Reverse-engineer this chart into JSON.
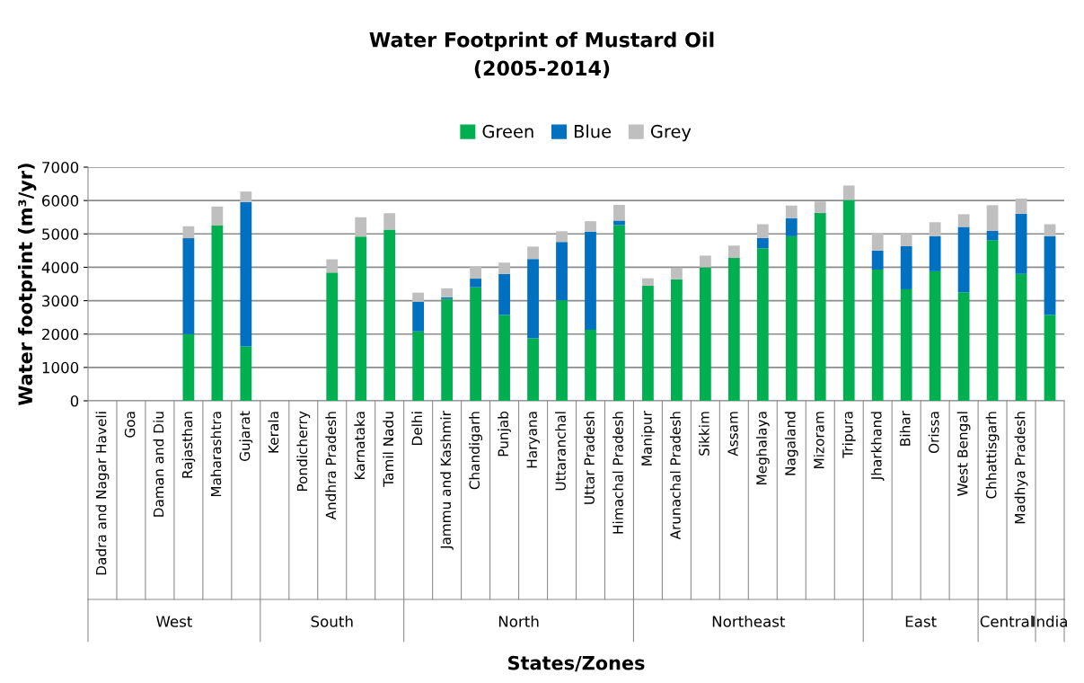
{
  "chart_data": {
    "type": "bar",
    "stacked": true,
    "title": "Water Footprint of Mustard Oil\n(2005-2014)",
    "xlabel": "States/Zones",
    "ylabel": "Water footprint (m³/yr)",
    "categories": [
      "Dadra and Nagar Haveli",
      "Goa",
      "Daman and Diu",
      "Rajasthan",
      "Maharashtra",
      "Gujarat",
      "Kerala",
      "Pondicherry",
      "Andhra Pradesh",
      "Karnataka",
      "Tamil Nadu",
      "Delhi",
      "Jammu and Kashmir",
      "Chandigarh",
      "Punjab",
      "Haryana",
      "Uttaranchal",
      "Uttar Pradesh",
      "Himachal Pradesh",
      "Manipur",
      "Arunachal Pradesh",
      "Sikkim",
      "Assam",
      "Meghalaya",
      "Nagaland",
      "Mizoram",
      "Tripura",
      "Jharkhand",
      "Bihar",
      "Orissa",
      "West Bengal",
      "Chhattisgarh",
      "Madhya Pradesh",
      null
    ],
    "series": [
      {
        "name": "Green",
        "color": "#00b050",
        "values": [
          null,
          null,
          null,
          2000,
          5250,
          1630,
          null,
          null,
          3840,
          4920,
          5130,
          2080,
          3050,
          3400,
          2570,
          1870,
          3010,
          2130,
          5260,
          3450,
          3640,
          4000,
          4280,
          4570,
          4930,
          5630,
          6020,
          3930,
          3340,
          3880,
          3250,
          4810,
          3800,
          2570
        ]
      },
      {
        "name": "Blue",
        "color": "#0070c0",
        "values": [
          null,
          null,
          null,
          2870,
          null,
          4330,
          null,
          null,
          null,
          null,
          null,
          890,
          50,
          260,
          1230,
          2380,
          1750,
          2940,
          140,
          null,
          null,
          null,
          null,
          310,
          540,
          null,
          null,
          570,
          1290,
          1050,
          1960,
          280,
          1810,
          2360
        ]
      },
      {
        "name": "Grey",
        "color": "#bfbfbf",
        "values": [
          null,
          null,
          null,
          360,
          570,
          310,
          null,
          null,
          400,
          580,
          490,
          270,
          270,
          360,
          340,
          370,
          320,
          310,
          470,
          220,
          350,
          350,
          370,
          410,
          380,
          340,
          430,
          520,
          390,
          420,
          380,
          770,
          450,
          360
        ]
      }
    ],
    "ylim": [
      0,
      7000
    ],
    "yticks": [
      0,
      1000,
      2000,
      3000,
      4000,
      5000,
      6000,
      7000
    ],
    "grid": "y",
    "legend": "top",
    "annotations": [
      "West",
      "South",
      "North",
      "Northeast",
      "East",
      "Central",
      "India"
    ]
  }
}
